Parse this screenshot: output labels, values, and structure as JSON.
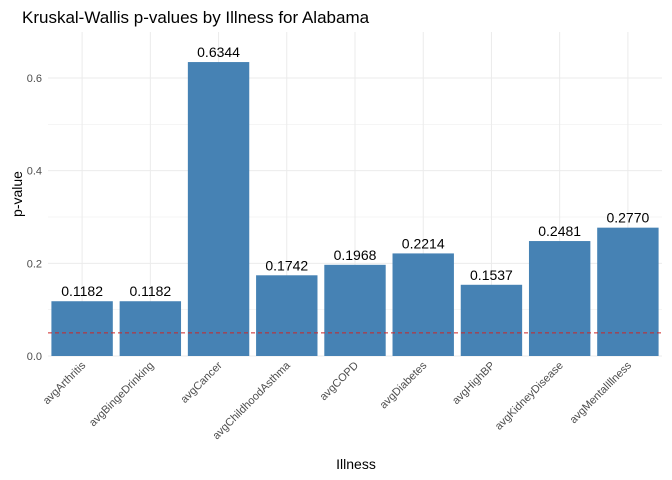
{
  "chart_data": {
    "type": "bar",
    "title": "Kruskal-Wallis p-values by Illness for Alabama",
    "xlabel": "Illness",
    "ylabel": "p-value",
    "categories": [
      "avgArthritis",
      "avgBingeDrinking",
      "avgCancer",
      "avgChildhoodAsthma",
      "avgCOPD",
      "avgDiabetes",
      "avgHighBP",
      "avgKidneyDisease",
      "avgMentalIllness"
    ],
    "values": [
      0.1182,
      0.1182,
      0.6344,
      0.1742,
      0.1968,
      0.2214,
      0.1537,
      0.2481,
      0.277
    ],
    "data_labels": [
      "0.1182",
      "0.1182",
      "0.6344",
      "0.1742",
      "0.1968",
      "0.2214",
      "0.1537",
      "0.2481",
      "0.2770"
    ],
    "yticks": [
      0.0,
      0.2,
      0.4,
      0.6
    ],
    "ytick_labels": [
      "0.0",
      "0.2",
      "0.4",
      "0.6"
    ],
    "ylim": [
      -0.03,
      0.69
    ],
    "reference_line": 0.05,
    "grid": true,
    "legend": "none",
    "bar_color": "#4682B4",
    "reference_line_color": "#CD2626",
    "grid_color": "#EBEBEB"
  }
}
